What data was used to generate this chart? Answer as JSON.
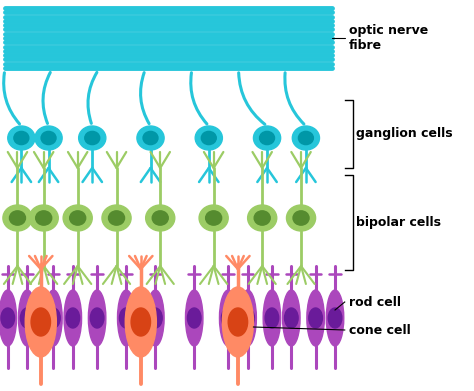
{
  "background_color": "#ffffff",
  "optic_nerve_color": "#26c6da",
  "ganglion_color": "#26c6da",
  "ganglion_nucleus": "#0097a7",
  "bipolar_color": "#9ccc65",
  "bipolar_nucleus": "#558b2f",
  "rod_color": "#ab47bc",
  "rod_nucleus": "#6a1b9a",
  "cone_color": "#ff8a65",
  "cone_nucleus": "#d84315",
  "labels": {
    "optic_nerve": "optic nerve\nfibre",
    "ganglion": "ganglion cells",
    "bipolar": "bipolar cells",
    "rod": "rod cell",
    "cone": "cone cell"
  },
  "figsize": [
    4.74,
    3.91
  ],
  "dpi": 100
}
